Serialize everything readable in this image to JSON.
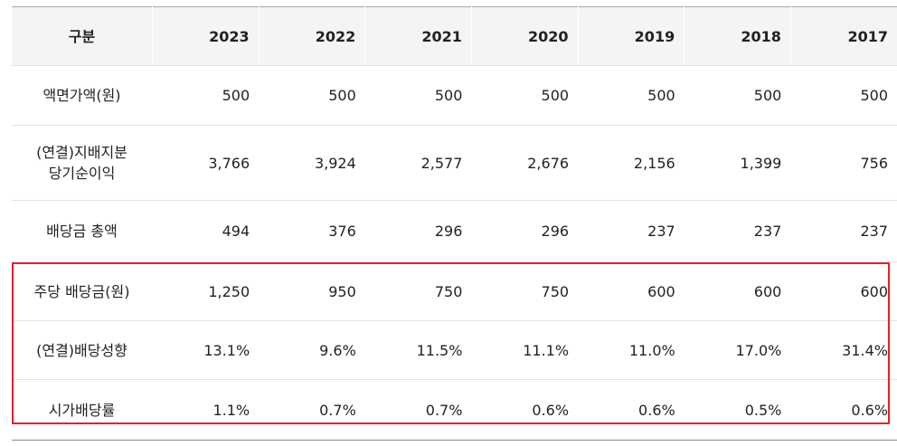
{
  "table": {
    "header": [
      "구분",
      "2023",
      "2022",
      "2021",
      "2020",
      "2019",
      "2018",
      "2017"
    ],
    "rows": [
      [
        "액면가액(원)",
        "500",
        "500",
        "500",
        "500",
        "500",
        "500",
        "500"
      ],
      [
        "(연결)지배지분\n당기순이익",
        "3,766",
        "3,924",
        "2,577",
        "2,676",
        "2,156",
        "1,399",
        "756"
      ],
      [
        "배당금 총액",
        "494",
        "376",
        "296",
        "296",
        "237",
        "237",
        "237"
      ],
      [
        "주당 배당금(원)",
        "1,250",
        "950",
        "750",
        "750",
        "600",
        "600",
        "600"
      ],
      [
        "(연결)배당성향",
        "13.1%",
        "9.6%",
        "11.5%",
        "11.1%",
        "11.0%",
        "17.0%",
        "31.4%"
      ],
      [
        "시가배당률",
        "1.1%",
        "0.7%",
        "0.7%",
        "0.6%",
        "0.6%",
        "0.5%",
        "0.6%"
      ]
    ]
  }
}
